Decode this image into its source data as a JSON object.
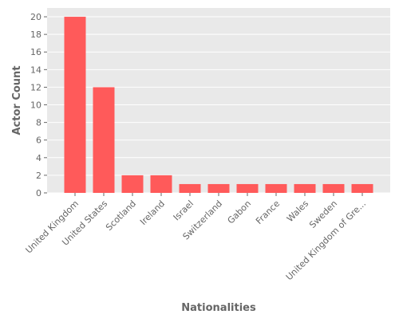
{
  "chart_data": {
    "type": "bar",
    "title": "",
    "xlabel": "Nationalities",
    "ylabel": "Actor Count",
    "categories": [
      "United Kingdom",
      "United States",
      "Scotland",
      "Ireland",
      "Israel",
      "Switzerland",
      "Gabon",
      "France",
      "Wales",
      "Sweden",
      "United Kingdom of Gre..."
    ],
    "values": [
      20,
      12,
      2,
      2,
      1,
      1,
      1,
      1,
      1,
      1,
      1
    ],
    "ylim": [
      0,
      21
    ],
    "yticks": [
      0,
      2,
      4,
      6,
      8,
      10,
      12,
      14,
      16,
      18,
      20
    ],
    "grid": true,
    "colors": {
      "bar": "#ff5a5a",
      "plot_background": "#e9e9e9",
      "grid": "#ffffff",
      "text": "#666666",
      "axis_label": "#666666"
    }
  }
}
